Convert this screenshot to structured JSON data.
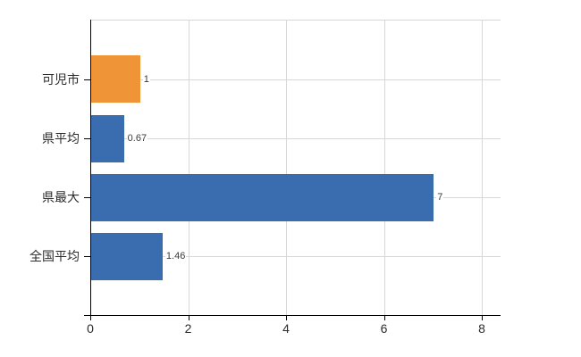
{
  "chart_data": {
    "type": "bar",
    "orientation": "horizontal",
    "title": "",
    "xlabel": "",
    "ylabel": "",
    "categories": [
      "可児市",
      "県平均",
      "県最大",
      "全国平均"
    ],
    "values": [
      1,
      0.67,
      7,
      1.46
    ],
    "value_labels": [
      "1",
      "0.67",
      "7",
      "1.46"
    ],
    "bar_colors": [
      "#EF9437",
      "#3A6DAF",
      "#3A6DAF",
      "#3A6DAF"
    ],
    "x_ticks": [
      0,
      2,
      4,
      6,
      8
    ],
    "xlim": [
      0,
      8.4
    ],
    "grid": true,
    "legend": "none",
    "colors": {
      "highlight": "#EF9437",
      "default": "#3A6DAF",
      "grid": "#d7d7d7",
      "axis": "#000000",
      "text": "#2b2b2b",
      "value_text": "#3a3a3a",
      "background": "#ffffff"
    }
  }
}
